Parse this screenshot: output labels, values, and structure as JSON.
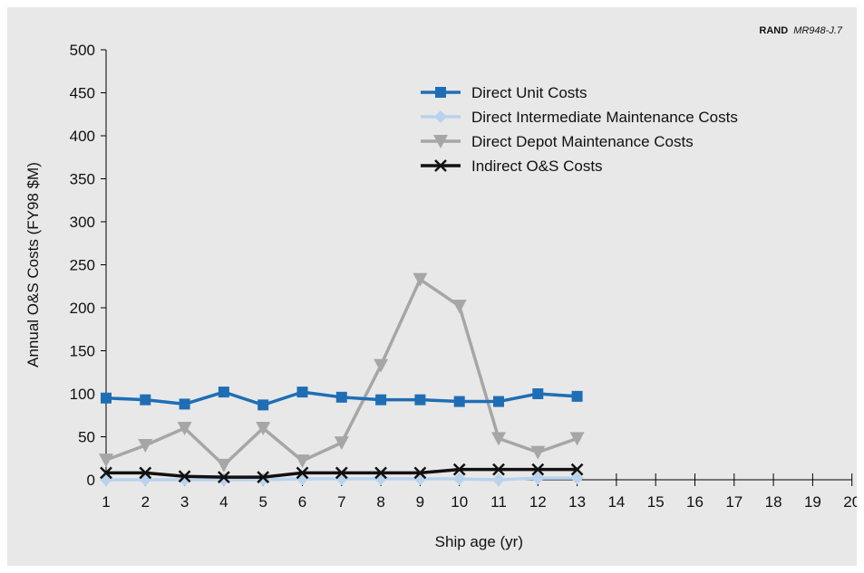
{
  "credit": {
    "org": "RAND",
    "code": "MR948-J.7"
  },
  "chart_data": {
    "type": "line",
    "xlabel": "Ship age (yr)",
    "ylabel": "Annual O&S Costs (FY98 $M)",
    "xlim": [
      1,
      20
    ],
    "ylim": [
      0,
      500
    ],
    "x_ticks": [
      1,
      2,
      3,
      4,
      5,
      6,
      7,
      8,
      9,
      10,
      11,
      12,
      13,
      14,
      15,
      16,
      17,
      18,
      19,
      20
    ],
    "y_ticks": [
      0,
      50,
      100,
      150,
      200,
      250,
      300,
      350,
      400,
      450,
      500
    ],
    "grid": false,
    "legend_position": "top-right",
    "series": [
      {
        "name": "Direct Unit Costs",
        "color": "#1f6eb5",
        "marker": "square",
        "x": [
          1,
          2,
          3,
          4,
          5,
          6,
          7,
          8,
          9,
          10,
          11,
          12,
          13
        ],
        "y": [
          95,
          93,
          88,
          102,
          87,
          102,
          96,
          93,
          93,
          91,
          91,
          100,
          97
        ]
      },
      {
        "name": "Direct Intermediate Maintenance Costs",
        "color": "#b9d3ee",
        "marker": "diamond",
        "x": [
          1,
          2,
          3,
          4,
          5,
          6,
          7,
          8,
          9,
          10,
          11,
          12,
          13
        ],
        "y": [
          0,
          0,
          0,
          0,
          0,
          1,
          1,
          1,
          1,
          1,
          0,
          2,
          2
        ]
      },
      {
        "name": "Direct Depot Maintenance Costs",
        "color": "#a6a6a6",
        "marker": "triangle-down",
        "x": [
          1,
          2,
          3,
          4,
          5,
          6,
          7,
          8,
          9,
          10,
          11,
          12,
          13
        ],
        "y": [
          23,
          40,
          60,
          17,
          60,
          22,
          43,
          133,
          233,
          202,
          48,
          32,
          48
        ]
      },
      {
        "name": "Indirect O&S Costs",
        "color": "#111111",
        "marker": "x",
        "x": [
          1,
          2,
          3,
          4,
          5,
          6,
          7,
          8,
          9,
          10,
          11,
          12,
          13
        ],
        "y": [
          8,
          8,
          4,
          3,
          3,
          8,
          8,
          8,
          8,
          12,
          12,
          12,
          12
        ]
      }
    ]
  }
}
